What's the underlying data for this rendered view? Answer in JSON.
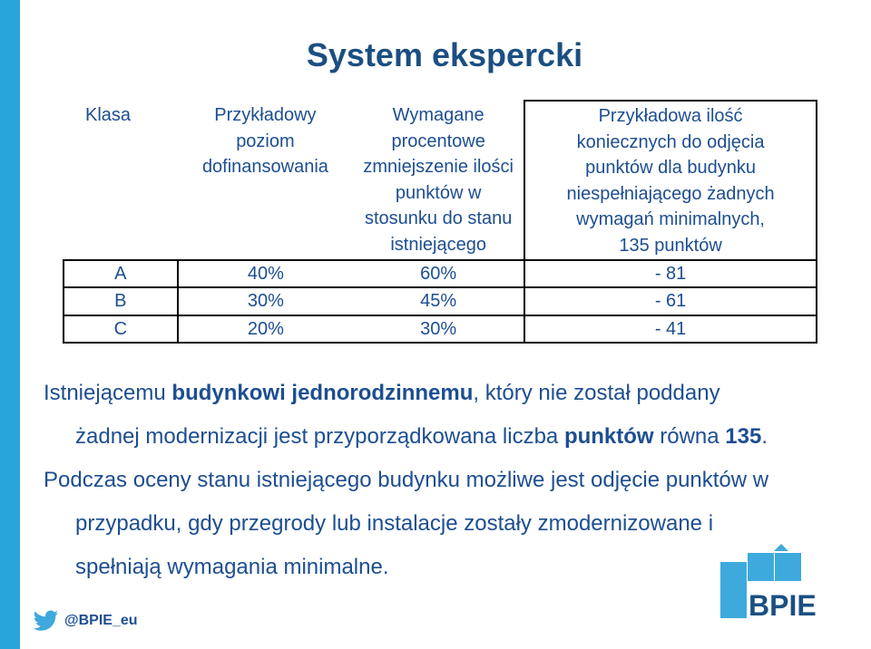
{
  "title": "System ekspercki",
  "table": {
    "headers": [
      "Klasa",
      "Przykładowy poziom dofinansowania",
      "Wymagane procentowe zmniejszenie ilości punktów w stosunku do stanu istniejącego",
      "Przykładowa ilość koniecznych do odjęcia punktów dla budynku niespełniającego żadnych wymagań minimalnych, 135 punktów"
    ],
    "header_lines": {
      "col1": [
        "Klasa"
      ],
      "col2": [
        "Przykładowy",
        "poziom",
        "dofinansowania"
      ],
      "col3": [
        "Wymagane",
        "procentowe",
        "zmniejszenie ilości",
        "punktów w",
        "stosunku do stanu",
        "istniejącego"
      ],
      "col4": [
        "Przykładowa ilość",
        "koniecznych do odjęcia",
        "punktów dla budynku",
        "niespełniającego żadnych",
        "wymagań minimalnych,",
        "135 punktów"
      ]
    },
    "rows": [
      {
        "klasa": "A",
        "poziom": "40%",
        "zmniejszenie": "60%",
        "punkty": "- 81"
      },
      {
        "klasa": "B",
        "poziom": "30%",
        "zmniejszenie": "45%",
        "punkty": "- 61"
      },
      {
        "klasa": "C",
        "poziom": "20%",
        "zmniejszenie": "30%",
        "punkty": "- 41"
      }
    ]
  },
  "paragraph1": {
    "line1_a": "Istniejącemu ",
    "line1_b": "budynkowi jednorodzinnemu",
    "line1_c": ", który nie został poddany",
    "line2_a": "żadnej modernizacji jest przyporządkowana liczba ",
    "line2_b": "punktów",
    "line2_c": " równa ",
    "line2_d": "135",
    "line2_e": "."
  },
  "paragraph2": {
    "line1": "Podczas oceny stanu istniejącego budynku możliwe jest odjęcie punktów w",
    "line2": "przypadku, gdy przegrody lub instalacje zostały zmodernizowane i",
    "line3": "spełniają wymagania minimalne."
  },
  "footer": {
    "twitter_handle": "@BPIE_eu",
    "logo_text": "BPIE"
  },
  "colors": {
    "title": "#1b4f82",
    "text": "#1d4e91",
    "accent_bar": "#27a6dc",
    "logo_blue": "#3ea9dc",
    "logo_dark": "#1b4f82"
  }
}
